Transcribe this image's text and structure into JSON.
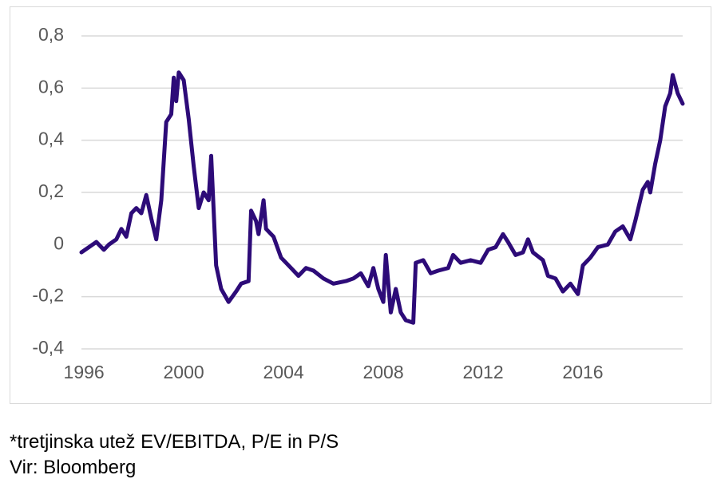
{
  "chart_data": {
    "type": "line",
    "x": [
      1995.9,
      1996.2,
      1996.5,
      1996.8,
      1997.0,
      1997.3,
      1997.5,
      1997.7,
      1997.9,
      1998.1,
      1998.3,
      1998.5,
      1998.7,
      1998.9,
      1999.1,
      1999.3,
      1999.5,
      1999.6,
      1999.7,
      1999.8,
      2000.0,
      2000.2,
      2000.4,
      2000.6,
      2000.8,
      2001.0,
      2001.1,
      2001.3,
      2001.5,
      2001.8,
      2002.1,
      2002.3,
      2002.6,
      2002.7,
      2002.9,
      2003.0,
      2003.2,
      2003.3,
      2003.6,
      2003.9,
      2004.3,
      2004.6,
      2004.9,
      2005.2,
      2005.6,
      2006.0,
      2006.5,
      2006.8,
      2007.1,
      2007.4,
      2007.6,
      2007.8,
      2008.0,
      2008.1,
      2008.3,
      2008.5,
      2008.7,
      2008.9,
      2009.2,
      2009.3,
      2009.6,
      2009.9,
      2010.2,
      2010.6,
      2010.8,
      2011.1,
      2011.5,
      2011.9,
      2012.2,
      2012.5,
      2012.8,
      2013.0,
      2013.3,
      2013.6,
      2013.8,
      2014.0,
      2014.4,
      2014.6,
      2014.9,
      2015.2,
      2015.5,
      2015.8,
      2016.0,
      2016.3,
      2016.6,
      2017.0,
      2017.3,
      2017.6,
      2017.9,
      2018.1,
      2018.4,
      2018.6,
      2018.7,
      2018.9,
      2019.1,
      2019.3,
      2019.5,
      2019.6,
      2019.8,
      2020.0
    ],
    "series": [
      {
        "color": "#2d0b78",
        "values": [
          -0.03,
          -0.01,
          0.01,
          -0.02,
          0.0,
          0.02,
          0.06,
          0.03,
          0.12,
          0.14,
          0.12,
          0.19,
          0.1,
          0.02,
          0.17,
          0.47,
          0.5,
          0.64,
          0.55,
          0.66,
          0.63,
          0.48,
          0.3,
          0.14,
          0.2,
          0.17,
          0.34,
          -0.08,
          -0.17,
          -0.22,
          -0.18,
          -0.15,
          -0.14,
          0.13,
          0.09,
          0.04,
          0.17,
          0.06,
          0.03,
          -0.05,
          -0.09,
          -0.12,
          -0.09,
          -0.1,
          -0.13,
          -0.15,
          -0.14,
          -0.13,
          -0.11,
          -0.16,
          -0.09,
          -0.17,
          -0.22,
          -0.04,
          -0.26,
          -0.17,
          -0.26,
          -0.29,
          -0.3,
          -0.07,
          -0.06,
          -0.11,
          -0.1,
          -0.09,
          -0.04,
          -0.07,
          -0.06,
          -0.07,
          -0.02,
          -0.01,
          0.04,
          0.01,
          -0.04,
          -0.03,
          0.02,
          -0.03,
          -0.06,
          -0.12,
          -0.13,
          -0.18,
          -0.15,
          -0.19,
          -0.08,
          -0.05,
          -0.01,
          0.0,
          0.05,
          0.07,
          0.02,
          0.09,
          0.21,
          0.24,
          0.2,
          0.31,
          0.4,
          0.53,
          0.58,
          0.65,
          0.58,
          0.54
        ]
      }
    ],
    "xlim": [
      1995.9,
      2020.0
    ],
    "xticks": [
      1996,
      2000,
      2004,
      2008,
      2012,
      2016
    ],
    "ylim": [
      -0.4,
      0.8
    ],
    "yticks": [
      {
        "value": -0.4,
        "label": "-0,4"
      },
      {
        "value": -0.2,
        "label": "-0,2"
      },
      0,
      {
        "value": 0.2,
        "label": "0,2"
      },
      {
        "value": 0.4,
        "label": "0,4"
      },
      {
        "value": 0.6,
        "label": "0,6"
      },
      {
        "value": 0.8,
        "label": "0,8"
      }
    ],
    "grid": true
  },
  "notes": [
    "*tretjinska utež EV/EBITDA, P/E in P/S",
    "Vir: Bloomberg"
  ]
}
